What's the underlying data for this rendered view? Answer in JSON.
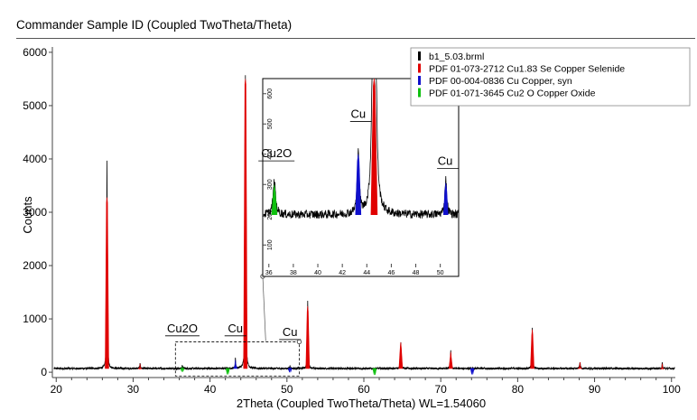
{
  "title": "Commander Sample ID (Coupled TwoTheta/Theta)",
  "colors": {
    "measured": "#000000",
    "cu183se": "#e00000",
    "cu": "#1010cc",
    "cu2o": "#10c010"
  },
  "chart_data": {
    "type": "line",
    "title": "Commander Sample ID (Coupled TwoTheta/Theta)",
    "xlabel": "2Theta (Coupled TwoTheta/Theta) WL=1.54060",
    "ylabel": "Counts",
    "xlim": [
      19.5,
      100.5
    ],
    "ylim": [
      -100,
      6100
    ],
    "xticks": [
      20,
      30,
      40,
      50,
      60,
      70,
      80,
      90,
      100
    ],
    "yticks": [
      0,
      1000,
      2000,
      3000,
      4000,
      5000,
      6000
    ],
    "xtick_labels": [
      "20",
      "30",
      "40",
      "50",
      "60",
      "70",
      "80",
      "90",
      "100"
    ],
    "ytick_labels": [
      "0",
      "1000",
      "2000",
      "3000",
      "4000",
      "5000",
      "6000"
    ],
    "baseline_counts": 70,
    "legend_position": "top-right",
    "legend": [
      {
        "label": "b1_5.03.brml",
        "color": "#000000"
      },
      {
        "label": "PDF 01-073-2712 Cu1.83 Se Copper Selenide",
        "color": "#e00000"
      },
      {
        "label": "PDF 00-004-0836 Cu Copper, syn",
        "color": "#1010cc"
      },
      {
        "label": "PDF 01-071-3645 Cu2 O Copper Oxide",
        "color": "#10c010"
      }
    ],
    "series": [
      {
        "name": "b1_5.03.brml",
        "peaks": [
          {
            "x": 26.6,
            "y": 3950
          },
          {
            "x": 30.9,
            "y": 180
          },
          {
            "x": 36.4,
            "y": 130
          },
          {
            "x": 43.3,
            "y": 260
          },
          {
            "x": 44.6,
            "y": 5580
          },
          {
            "x": 50.4,
            "y": 120
          },
          {
            "x": 52.7,
            "y": 1340
          },
          {
            "x": 64.8,
            "y": 580
          },
          {
            "x": 71.3,
            "y": 400
          },
          {
            "x": 81.9,
            "y": 840
          },
          {
            "x": 88.1,
            "y": 200
          },
          {
            "x": 98.8,
            "y": 170
          }
        ]
      },
      {
        "name": "PDF 01-073-2712 Cu1.83 Se Copper Selenide",
        "sticks": [
          {
            "x": 26.6,
            "y": 3280
          },
          {
            "x": 30.9,
            "y": 160
          },
          {
            "x": 44.6,
            "y": 5500
          },
          {
            "x": 52.7,
            "y": 1240
          },
          {
            "x": 64.8,
            "y": 560
          },
          {
            "x": 71.3,
            "y": 380
          },
          {
            "x": 81.9,
            "y": 800
          },
          {
            "x": 88.1,
            "y": 190
          },
          {
            "x": 98.8,
            "y": 160
          }
        ]
      },
      {
        "name": "PDF 00-004-0836 Cu Copper, syn",
        "sticks": [
          {
            "x": 43.3,
            "y": 230
          },
          {
            "x": 50.4,
            "y": 100
          },
          {
            "x": 74.1,
            "y": 60
          }
        ]
      },
      {
        "name": "PDF 01-071-3645 Cu2 O Copper Oxide",
        "sticks": [
          {
            "x": 36.4,
            "y": 110
          },
          {
            "x": 42.3,
            "y": 60
          },
          {
            "x": 61.4,
            "y": 50
          }
        ]
      }
    ],
    "annotations": [
      {
        "text": "Cu2O",
        "x": 36.4,
        "y": 750
      },
      {
        "text": "Cu",
        "x": 43.3,
        "y": 750
      },
      {
        "text": "Cu",
        "x": 50.4,
        "y": 680
      }
    ],
    "zoom_region": {
      "xlim": [
        35.5,
        51.6
      ],
      "ylim": [
        -70,
        570
      ]
    },
    "inset": {
      "xlim": [
        35.5,
        51.5
      ],
      "ylim": [
        50,
        650
      ],
      "xticks": [
        36,
        38,
        40,
        42,
        44,
        46,
        48,
        50
      ],
      "yticks": [
        100,
        200,
        300,
        400,
        500,
        600
      ],
      "xtick_labels": [
        "36",
        "38",
        "40",
        "42",
        "44",
        "46",
        "48",
        "50"
      ],
      "ytick_labels": [
        "100",
        "200",
        "300",
        "400",
        "500",
        "600"
      ],
      "baseline_counts": 200,
      "annotations": [
        {
          "text": "Cu2O",
          "x": 36.4,
          "y": 390
        },
        {
          "text": "Cu",
          "x": 43.3,
          "y": 520
        },
        {
          "text": "Cu",
          "x": 50.4,
          "y": 365
        }
      ]
    }
  }
}
